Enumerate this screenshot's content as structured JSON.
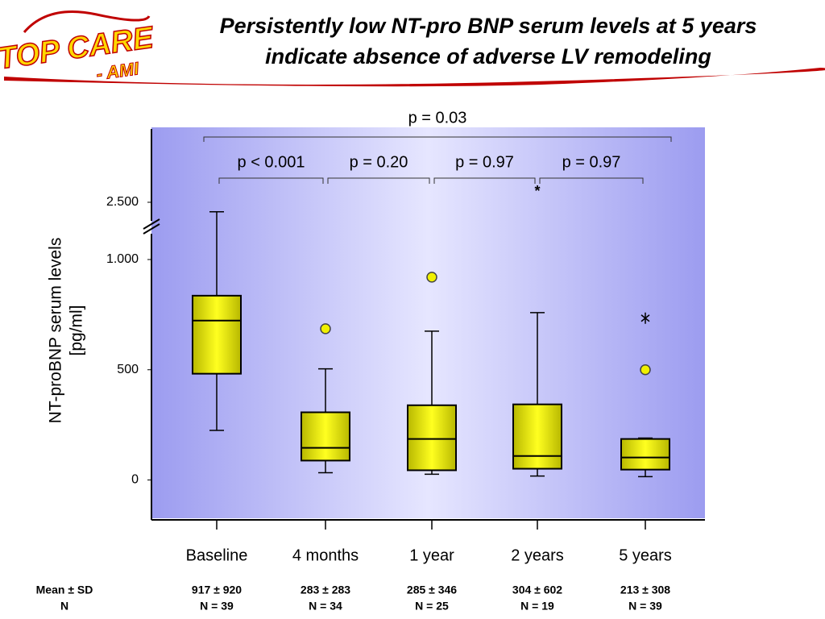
{
  "logo": [
    "TOP CARE",
    "- AMI"
  ],
  "chart_data": {
    "type": "box",
    "title": [
      "Persistently low NT-pro BNP serum levels at 5 years",
      "indicate absence of adverse LV remodeling"
    ],
    "y_label": [
      "NT-proBNP serum levels",
      "[pg/ml]"
    ],
    "categories": [
      "Baseline",
      "4 months",
      "1 year",
      "2 years",
      "5 years"
    ],
    "boxes": [
      {
        "whisker_low": 225,
        "q1": 482,
        "median": 723,
        "q3": 836,
        "whisker_high": 2250,
        "outliers": [],
        "extremes": []
      },
      {
        "whisker_low": 33,
        "q1": 88,
        "median": 146,
        "q3": 307,
        "whisker_high": 504,
        "outliers": [
          686
        ],
        "extremes": []
      },
      {
        "whisker_low": 26,
        "q1": 44,
        "median": 186,
        "q3": 339,
        "whisker_high": 675,
        "outliers": [
          920
        ],
        "extremes": []
      },
      {
        "whisker_low": 18,
        "q1": 51,
        "median": 109,
        "q3": 343,
        "whisker_high": 759,
        "outliers": [],
        "extremes": []
      },
      {
        "whisker_low": 15,
        "q1": 47,
        "median": 102,
        "q3": 186,
        "whisker_high": 190,
        "outliers": [
          500
        ],
        "extremes": [
          734
        ]
      }
    ],
    "color": "#f0f000",
    "ylim": [
      -170,
      4400
    ],
    "axis_break": 1000,
    "yticks": [
      0,
      500,
      {
        "value": 1000,
        "label": "1.000"
      },
      {
        "value": 2500,
        "label": "2.500"
      }
    ],
    "comparisons": [
      {
        "from": 0,
        "to": 4,
        "label": "p = 0.03"
      },
      {
        "from": 0,
        "to": 1,
        "label": "p < 0.001"
      },
      {
        "from": 1,
        "to": 2,
        "label": "p = 0.20"
      },
      {
        "from": 2,
        "to": 3,
        "label": "p = 0.97"
      },
      {
        "from": 3,
        "to": 4,
        "label": "p = 0.97"
      }
    ],
    "annotations": [
      {
        "text": "*",
        "category": 3
      }
    ],
    "stats": {
      "row_labels": [
        "Mean ± SD",
        "N"
      ],
      "rows": [
        [
          "917 ± 920",
          "283 ± 283",
          "285 ± 346",
          "304 ± 602",
          "213 ± 308"
        ],
        [
          "N = 39",
          "N = 34",
          "N = 25",
          "N = 19",
          "N = 39"
        ]
      ]
    }
  }
}
